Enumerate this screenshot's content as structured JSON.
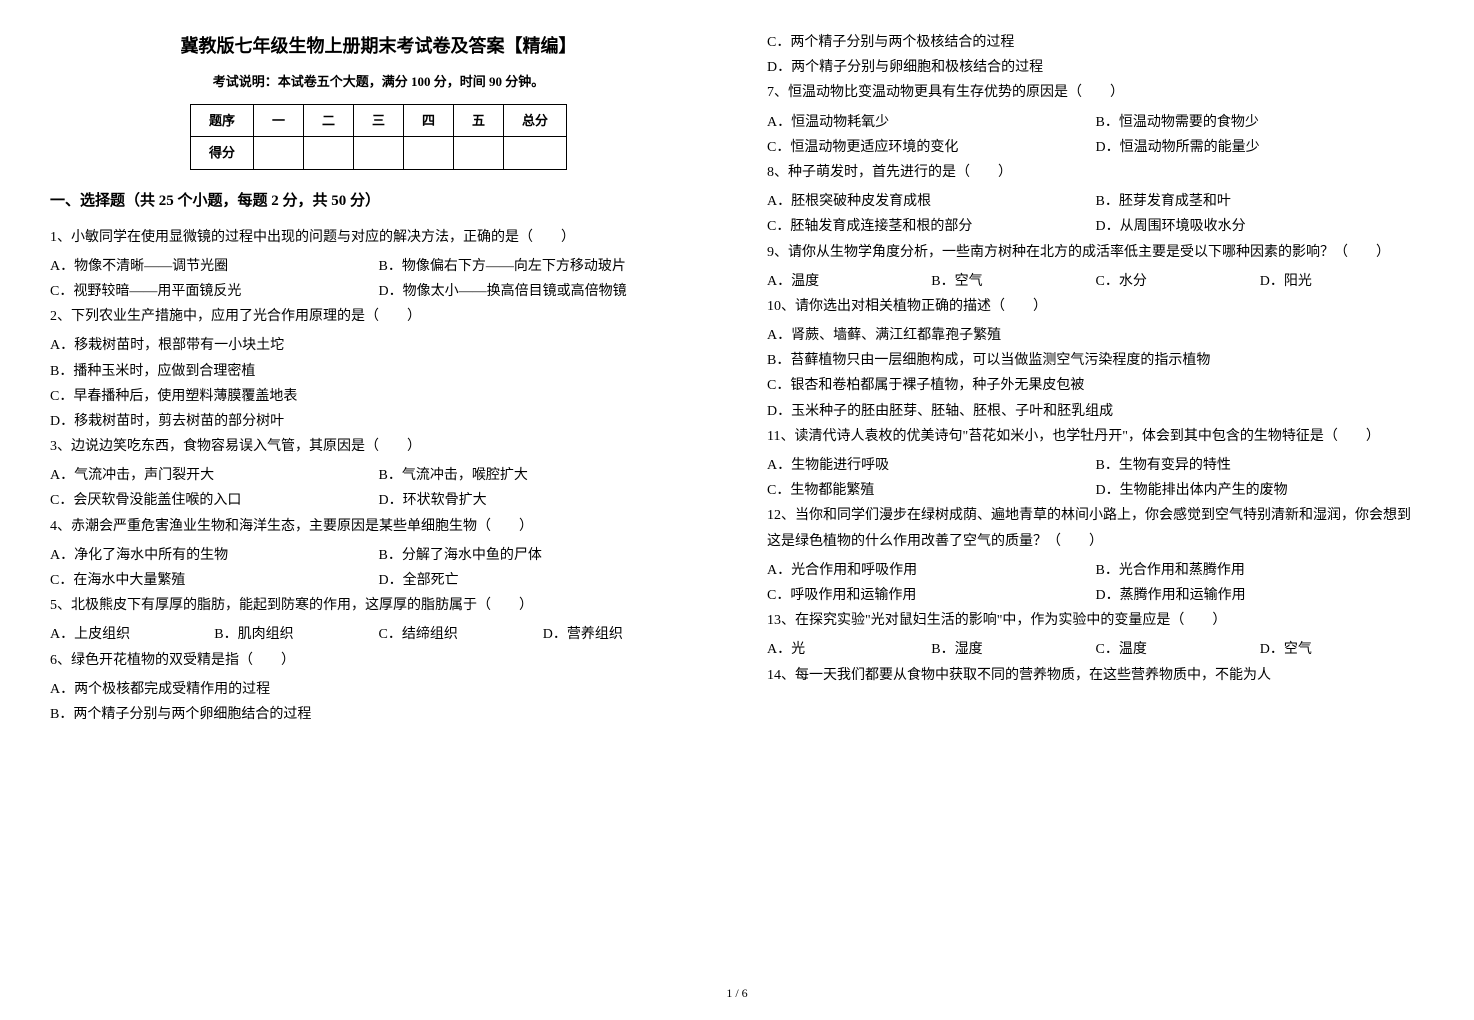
{
  "title": "冀教版七年级生物上册期末考试卷及答案【精编】",
  "subtitle": "考试说明：本试卷五个大题，满分 100 分，时间 90 分钟。",
  "score_table": {
    "headers": [
      "题序",
      "一",
      "二",
      "三",
      "四",
      "五",
      "总分"
    ],
    "row_label": "得分"
  },
  "section_header": "一、选择题（共 25 个小题，每题 2 分，共 50 分）",
  "questions_left": [
    {
      "stem": "1、小敏同学在使用显微镜的过程中出现的问题与对应的解决方法，正确的是（　　）",
      "opts": [
        "A．物像不清晰——调节光圈",
        "B．物像偏右下方——向左下方移动玻片",
        "C．视野较暗——用平面镜反光",
        "D．物像太小——换高倍目镜或高倍物镜"
      ],
      "layout": "two"
    },
    {
      "stem": "2、下列农业生产措施中，应用了光合作用原理的是（　　）",
      "opts": [
        "A．移栽树苗时，根部带有一小块土坨",
        "B．播种玉米时，应做到合理密植",
        "C．早春播种后，使用塑料薄膜覆盖地表",
        "D．移栽树苗时，剪去树苗的部分树叶"
      ],
      "layout": "one"
    },
    {
      "stem": "3、边说边笑吃东西，食物容易误入气管，其原因是（　　）",
      "opts": [
        "A．气流冲击，声门裂开大",
        "B．气流冲击，喉腔扩大",
        "C．会厌软骨没能盖住喉的入口",
        "D．环状软骨扩大"
      ],
      "layout": "two"
    },
    {
      "stem": "4、赤潮会严重危害渔业生物和海洋生态，主要原因是某些单细胞生物（　　）",
      "opts": [
        "A．净化了海水中所有的生物",
        "B．分解了海水中鱼的尸体",
        "C．在海水中大量繁殖",
        "D．全部死亡"
      ],
      "layout": "two"
    },
    {
      "stem": "5、北极熊皮下有厚厚的脂肪，能起到防寒的作用，这厚厚的脂肪属于（　　）",
      "opts": [
        "A．上皮组织",
        "B．肌肉组织",
        "C．结缔组织",
        "D．营养组织"
      ],
      "layout": "four"
    },
    {
      "stem": "6、绿色开花植物的双受精是指（　　）",
      "opts": [
        "A．两个极核都完成受精作用的过程",
        "B．两个精子分别与两个卵细胞结合的过程"
      ],
      "layout": "one"
    }
  ],
  "questions_right": [
    {
      "opts": [
        "C．两个精子分别与两个极核结合的过程",
        "D．两个精子分别与卵细胞和极核结合的过程"
      ],
      "layout": "one"
    },
    {
      "stem": "7、恒温动物比变温动物更具有生存优势的原因是（　　）",
      "opts": [
        "A．恒温动物耗氧少",
        "B．恒温动物需要的食物少",
        "C．恒温动物更适应环境的变化",
        "D．恒温动物所需的能量少"
      ],
      "layout": "two"
    },
    {
      "stem": "8、种子萌发时，首先进行的是（　　）",
      "opts": [
        "A．胚根突破种皮发育成根",
        "B．胚芽发育成茎和叶",
        "C．胚轴发育成连接茎和根的部分",
        "D．从周围环境吸收水分"
      ],
      "layout": "two"
    },
    {
      "stem": "9、请你从生物学角度分析，一些南方树种在北方的成活率低主要是受以下哪种因素的影响？（　　）",
      "opts": [
        "A．温度",
        "B．空气",
        "C．水分",
        "D．阳光"
      ],
      "layout": "four"
    },
    {
      "stem": "10、请你选出对相关植物正确的描述（　　）",
      "opts": [
        "A．肾蕨、墙藓、满江红都靠孢子繁殖",
        "B．苔藓植物只由一层细胞构成，可以当做监测空气污染程度的指示植物",
        "C．银杏和卷柏都属于裸子植物，种子外无果皮包被",
        "D．玉米种子的胚由胚芽、胚轴、胚根、子叶和胚乳组成"
      ],
      "layout": "one"
    },
    {
      "stem": "11、读清代诗人袁枚的优美诗句\"苔花如米小，也学牡丹开\"，体会到其中包含的生物特征是（　　）",
      "opts": [
        "A．生物能进行呼吸",
        "B．生物有变异的特性",
        "C．生物都能繁殖",
        "D．生物能排出体内产生的废物"
      ],
      "layout": "two"
    },
    {
      "stem": "12、当你和同学们漫步在绿树成荫、遍地青草的林间小路上，你会感觉到空气特别清新和湿润，你会想到这是绿色植物的什么作用改善了空气的质量？（　　）",
      "opts": [
        "A．光合作用和呼吸作用",
        "B．光合作用和蒸腾作用",
        "C．呼吸作用和运输作用",
        "D．蒸腾作用和运输作用"
      ],
      "layout": "two"
    },
    {
      "stem": "13、在探究实验\"光对鼠妇生活的影响\"中，作为实验中的变量应是（　　）",
      "opts": [
        "A．光",
        "B．湿度",
        "C．温度",
        "D．空气"
      ],
      "layout": "four"
    },
    {
      "stem": "14、每一天我们都要从食物中获取不同的营养物质，在这些营养物质中，不能为人"
    }
  ],
  "page_number": "1 / 6"
}
